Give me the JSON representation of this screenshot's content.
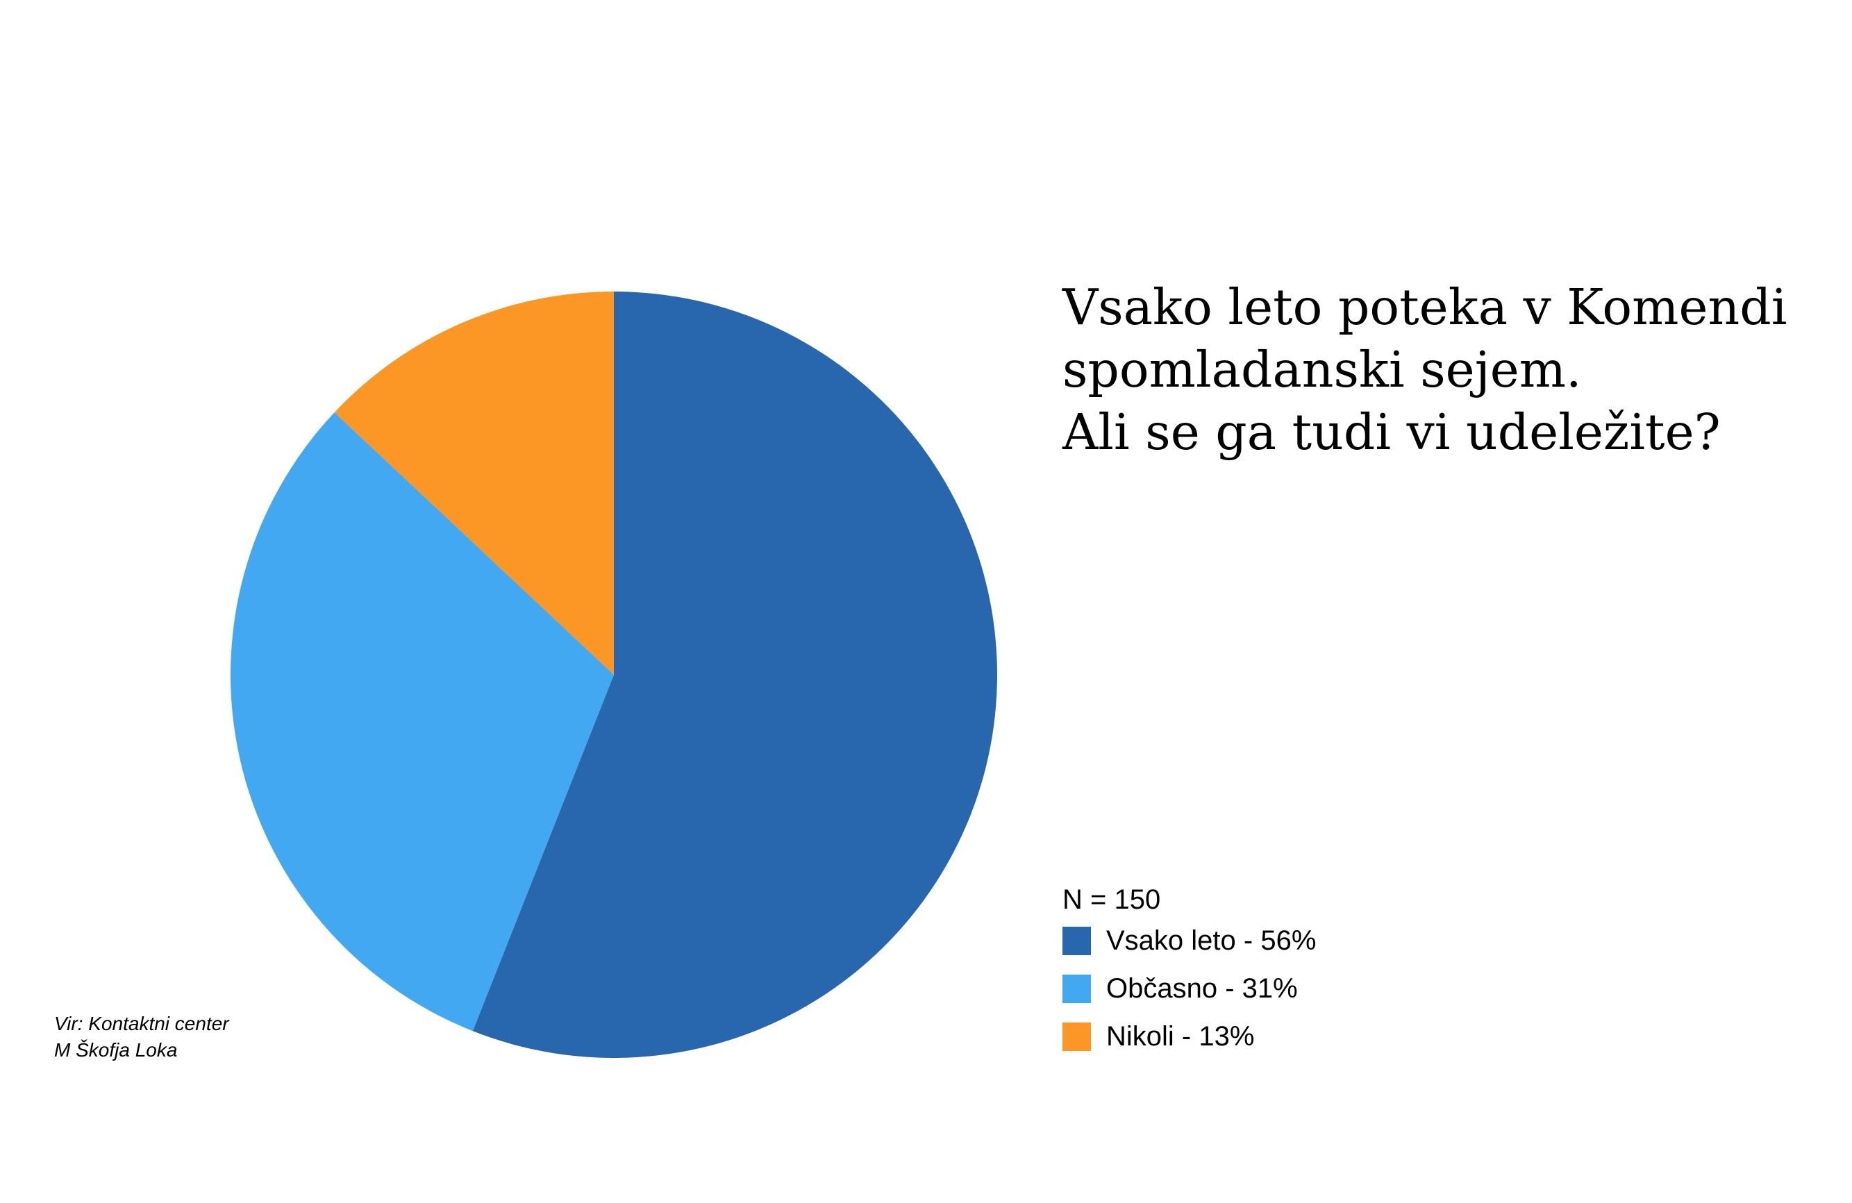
{
  "chart_data": {
    "type": "pie",
    "title": "Vsako leto poteka v Komendi\nspomladanski sejem.\nAli se ga tudi vi udeležite?",
    "sample_size": "N = 150",
    "slices": [
      {
        "name": "Vsako leto",
        "value": 56,
        "label": "Vsako leto - 56%",
        "color": "#2866ad"
      },
      {
        "name": "Občasno",
        "value": 31,
        "label": "Občasno - 31%",
        "color": "#42a8f2"
      },
      {
        "name": "Nikoli",
        "value": 13,
        "label": "Nikoli - 13%",
        "color": "#fc9624"
      }
    ],
    "legend_position": "bottom-right"
  },
  "source": {
    "line1": "Vir: Kontaktni center",
    "line2": "M Škofja Loka"
  }
}
